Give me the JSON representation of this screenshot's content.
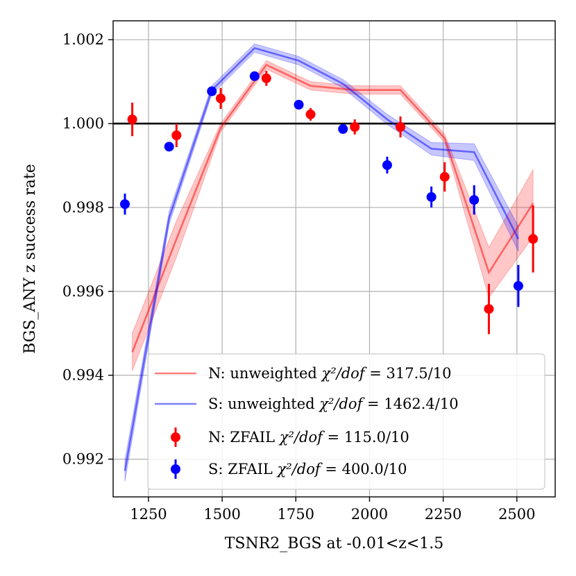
{
  "chart_data": {
    "type": "line",
    "xlabel": "TSNR2_BGS at -0.01<z<1.5",
    "ylabel": "BGS_ANY z success rate",
    "xlim": [
      1130,
      2630
    ],
    "ylim": [
      0.9911,
      1.00245
    ],
    "xticks": [
      1250,
      1500,
      1750,
      2000,
      2250,
      2500
    ],
    "yticks": [
      0.992,
      0.994,
      0.996,
      0.998,
      1.0,
      1.002
    ],
    "xtick_labels": [
      "1250",
      "1500",
      "1750",
      "2000",
      "2250",
      "2500"
    ],
    "ytick_labels": [
      "0.992",
      "0.994",
      "0.996",
      "0.998",
      "1.000",
      "1.002"
    ],
    "grid": true,
    "reference_line": 1.0,
    "legend_position": "lower-right",
    "series": [
      {
        "name": "N: unweighted",
        "label": "N: unweighted χ²/dof = 317.5/10",
        "kind": "line",
        "color": "#ff0000",
        "x": [
          1195,
          1345,
          1495,
          1650,
          1800,
          1950,
          2105,
          2255,
          2405,
          2555
        ],
        "y": [
          0.99455,
          0.99725,
          0.9999,
          1.0014,
          1.0009,
          1.0008,
          1.0008,
          0.99965,
          0.99645,
          0.9981
        ],
        "band": [
          0.00045,
          0.00043,
          0.0001,
          0.0001,
          0.0001,
          0.0001,
          0.0001,
          0.0001,
          0.0006,
          0.0008
        ]
      },
      {
        "name": "S: unweighted",
        "label": "S: unweighted χ²/dof = 1462.4/10",
        "kind": "line",
        "color": "#0000ff",
        "x": [
          1170,
          1320,
          1465,
          1610,
          1760,
          1910,
          2060,
          2210,
          2355,
          2505
        ],
        "y": [
          0.99172,
          0.99775,
          1.0008,
          1.0018,
          1.0015,
          1.00095,
          1.0001,
          0.9994,
          0.99932,
          0.99725
        ],
        "band": [
          0.00025,
          0.00015,
          0.0001,
          0.0001,
          0.0001,
          0.0001,
          0.00012,
          0.00015,
          0.0002,
          0.0003
        ]
      },
      {
        "name": "N: ZFAIL",
        "label": "N: ZFAIL χ²/dof = 115.0/10",
        "kind": "errorbar",
        "color": "#ff0000",
        "x": [
          1195,
          1345,
          1495,
          1650,
          1800,
          1950,
          2105,
          2255,
          2405,
          2555
        ],
        "y": [
          1.0001,
          0.99972,
          1.0006,
          1.00108,
          1.00022,
          0.99992,
          0.99992,
          0.99873,
          0.99558,
          0.99725
        ],
        "err": [
          0.0004,
          0.00028,
          0.00025,
          0.00018,
          0.00015,
          0.00018,
          0.00025,
          0.00035,
          0.0006,
          0.0008
        ]
      },
      {
        "name": "S: ZFAIL",
        "label": "S: ZFAIL χ²/dof = 400.0/10",
        "kind": "errorbar",
        "color": "#0000ff",
        "x": [
          1170,
          1320,
          1465,
          1610,
          1760,
          1910,
          2060,
          2210,
          2355,
          2505
        ],
        "y": [
          0.99808,
          0.99945,
          1.00077,
          1.00113,
          1.00045,
          0.99987,
          0.99901,
          0.99825,
          0.99818,
          0.99613
        ],
        "err": [
          0.00025,
          0.0001,
          0.0001,
          0.0001,
          0.0001,
          0.0001,
          0.0002,
          0.00025,
          0.00035,
          0.0005
        ]
      }
    ]
  },
  "legend": {
    "items": [
      {
        "prefix": "N: unweighted ",
        "formula": "χ²/dof",
        "suffix": " = 317.5/10"
      },
      {
        "prefix": "S: unweighted ",
        "formula": "χ²/dof",
        "suffix": " = 1462.4/10"
      },
      {
        "prefix": "N: ZFAIL ",
        "formula": "χ²/dof",
        "suffix": " = 115.0/10"
      },
      {
        "prefix": "S: ZFAIL ",
        "formula": "χ²/dof",
        "suffix": " = 400.0/10"
      }
    ]
  }
}
